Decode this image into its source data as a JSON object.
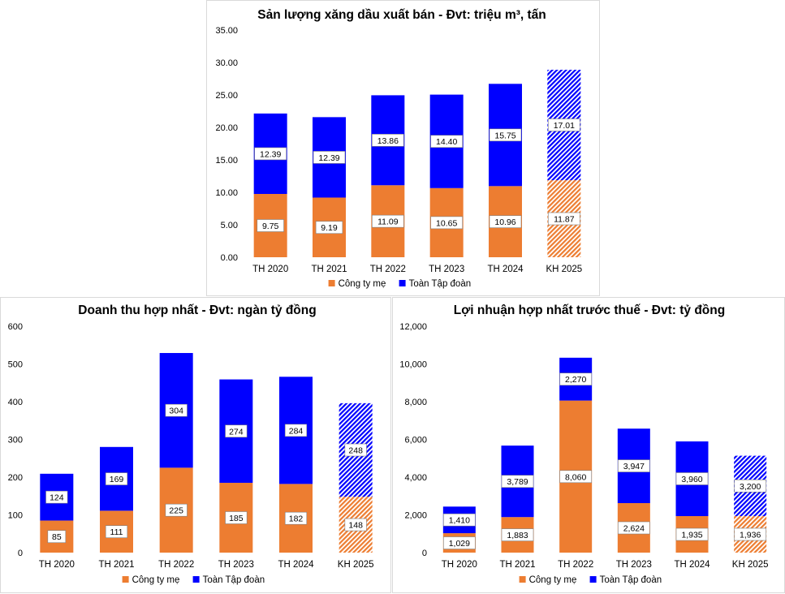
{
  "colors": {
    "parent": "#ED7D31",
    "group": "#0000FF"
  },
  "chart_data": [
    {
      "type": "bar",
      "stacked": true,
      "title": "Sản lượng xăng dầu xuất bán - Đvt: triệu m³, tấn",
      "categories": [
        "TH 2020",
        "TH 2021",
        "TH 2022",
        "TH 2023",
        "TH 2024",
        "KH 2025"
      ],
      "series": [
        {
          "name": "Công ty mẹ",
          "values": [
            9.75,
            9.19,
            11.09,
            10.65,
            10.96,
            11.87
          ],
          "labels": [
            "9.75",
            "9.19",
            "11.09",
            "10.65",
            "10.96",
            "11.87"
          ]
        },
        {
          "name": "Toàn Tập đoàn",
          "values": [
            12.39,
            12.39,
            13.86,
            14.4,
            15.75,
            17.01
          ],
          "labels": [
            "12.39",
            "12.39",
            "13.86",
            "14.40",
            "15.75",
            "17.01"
          ]
        }
      ],
      "hatched_categories": [
        "KH 2025"
      ],
      "ylim": [
        0,
        35
      ],
      "yticks": [
        0,
        5,
        10,
        15,
        20,
        25,
        30,
        35
      ],
      "ytick_labels": [
        "0.00",
        "5.00",
        "10.00",
        "15.00",
        "20.00",
        "25.00",
        "30.00",
        "35.00"
      ],
      "grid": false,
      "legend": "bottom"
    },
    {
      "type": "bar",
      "stacked": true,
      "title": "Doanh thu hợp nhất - Đvt: ngàn tỷ đồng",
      "categories": [
        "TH 2020",
        "TH 2021",
        "TH 2022",
        "TH 2023",
        "TH 2024",
        "KH 2025"
      ],
      "series": [
        {
          "name": "Công ty mẹ",
          "values": [
            85,
            111,
            225,
            185,
            182,
            148
          ],
          "labels": [
            "85",
            "111",
            "225",
            "185",
            "182",
            "148"
          ]
        },
        {
          "name": "Toàn Tập đoàn",
          "values": [
            124,
            169,
            304,
            274,
            284,
            248
          ],
          "labels": [
            "124",
            "169",
            "304",
            "274",
            "284",
            "248"
          ]
        }
      ],
      "hatched_categories": [
        "KH 2025"
      ],
      "ylim": [
        0,
        600
      ],
      "yticks": [
        0,
        100,
        200,
        300,
        400,
        500,
        600
      ],
      "ytick_labels": [
        "0",
        "100",
        "200",
        "300",
        "400",
        "500",
        "600"
      ],
      "grid": false,
      "legend": "bottom"
    },
    {
      "type": "bar",
      "stacked": true,
      "title": "Lợi nhuận hợp nhất trước thuế - Đvt: tỷ đồng",
      "categories": [
        "TH 2020",
        "TH 2021",
        "TH 2022",
        "TH 2023",
        "TH 2024",
        "KH 2025"
      ],
      "series": [
        {
          "name": "Công ty mẹ",
          "values": [
            1029,
            1883,
            8060,
            2624,
            1935,
            1936
          ],
          "labels": [
            "1,029",
            "1,883",
            "8,060",
            "2,624",
            "1,935",
            "1,936"
          ]
        },
        {
          "name": "Toàn Tập đoàn",
          "values": [
            1410,
            3789,
            2270,
            3947,
            3960,
            3200
          ],
          "labels": [
            "1,410",
            "3,789",
            "2,270",
            "3,947",
            "3,960",
            "3,200"
          ]
        }
      ],
      "hatched_categories": [
        "KH 2025"
      ],
      "ylim": [
        0,
        12000
      ],
      "yticks": [
        0,
        2000,
        4000,
        6000,
        8000,
        10000,
        12000
      ],
      "ytick_labels": [
        "0",
        "2,000",
        "4,000",
        "6,000",
        "8,000",
        "10,000",
        "12,000"
      ],
      "grid": false,
      "legend": "bottom"
    }
  ]
}
